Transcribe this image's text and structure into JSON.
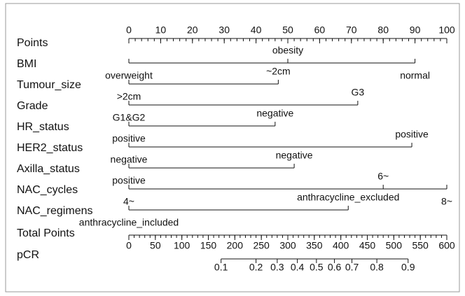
{
  "chart_data": {
    "type": "nomogram",
    "points": {
      "label": "Points",
      "xlim": [
        0,
        100
      ],
      "xticks": [
        0,
        10,
        20,
        30,
        40,
        50,
        60,
        70,
        80,
        90,
        100
      ],
      "minor_step": 2
    },
    "variables": [
      {
        "name": "BMI",
        "levels": [
          "overweight",
          "obesity",
          "normal"
        ],
        "values": [
          0,
          50,
          90
        ]
      },
      {
        "name": "Tumour_size",
        "levels": [
          ">2cm",
          "~2cm"
        ],
        "values": [
          0,
          47
        ]
      },
      {
        "name": "Grade",
        "levels": [
          "G1&G2",
          "G3"
        ],
        "values": [
          0,
          72
        ]
      },
      {
        "name": "HR_status",
        "levels": [
          "positive",
          "negative"
        ],
        "values": [
          0,
          46
        ]
      },
      {
        "name": "HER2_status",
        "levels": [
          "negative",
          "positive"
        ],
        "values": [
          0,
          89
        ]
      },
      {
        "name": "Axilla_status",
        "levels": [
          "positive",
          "negative"
        ],
        "values": [
          0,
          52
        ]
      },
      {
        "name": "NAC_cycles",
        "levels": [
          "4~",
          "6~",
          "8~"
        ],
        "values": [
          0,
          80,
          100
        ]
      },
      {
        "name": "NAC_regimens",
        "levels": [
          "anthracycline_included",
          "anthracycline_excluded"
        ],
        "values": [
          0,
          69
        ]
      }
    ],
    "total": {
      "label": "Total Points",
      "xlim": [
        0,
        600
      ],
      "xticks": [
        0,
        50,
        100,
        150,
        200,
        250,
        300,
        350,
        400,
        450,
        500,
        550,
        600
      ],
      "minor_step": 10
    },
    "pcr": {
      "label": "pCR",
      "ticks": [
        0.1,
        0.2,
        0.3,
        0.4,
        0.5,
        0.6,
        0.7,
        0.8,
        0.9
      ],
      "positions": [
        174,
        240,
        280,
        318,
        354,
        388,
        421,
        468,
        527
      ]
    }
  }
}
